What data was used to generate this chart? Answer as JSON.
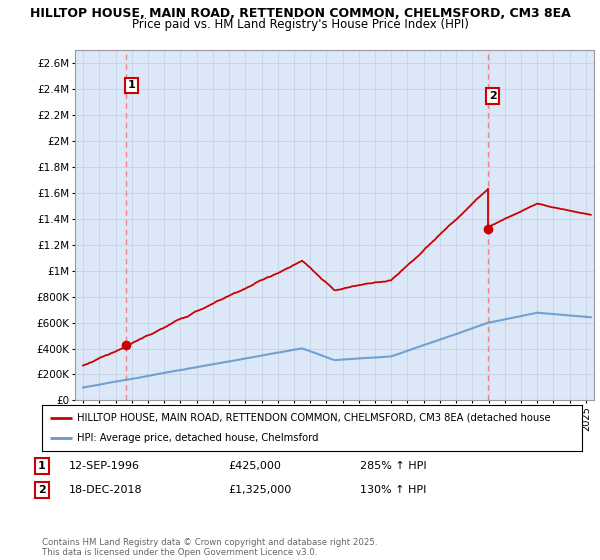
{
  "title_line1": "HILLTOP HOUSE, MAIN ROAD, RETTENDON COMMON, CHELMSFORD, CM3 8EA",
  "title_line2": "Price paid vs. HM Land Registry's House Price Index (HPI)",
  "ylim": [
    0,
    2700000
  ],
  "yticks": [
    0,
    200000,
    400000,
    600000,
    800000,
    1000000,
    1200000,
    1400000,
    1600000,
    1800000,
    2000000,
    2200000,
    2400000,
    2600000
  ],
  "ytick_labels": [
    "£0",
    "£200K",
    "£400K",
    "£600K",
    "£800K",
    "£1M",
    "£1.2M",
    "£1.4M",
    "£1.6M",
    "£1.8M",
    "£2M",
    "£2.2M",
    "£2.4M",
    "£2.6M"
  ],
  "xlim_start": 1993.5,
  "xlim_end": 2025.5,
  "sale1_year": 1996.67,
  "sale1_price": 425000,
  "sale2_year": 2018.96,
  "sale2_price": 1325000,
  "hpi_color": "#6699cc",
  "price_color": "#cc0000",
  "dashed_line_color": "#ee8888",
  "grid_color": "#c8d4e8",
  "background_color": "#dce8f8",
  "legend_label1": "HILLTOP HOUSE, MAIN ROAD, RETTENDON COMMON, CHELMSFORD, CM3 8EA (detached house",
  "legend_label2": "HPI: Average price, detached house, Chelmsford",
  "sale1_label": "12-SEP-1996",
  "sale1_amount": "£425,000",
  "sale1_hpi": "285% ↑ HPI",
  "sale2_label": "18-DEC-2018",
  "sale2_amount": "£1,325,000",
  "sale2_hpi": "130% ↑ HPI",
  "footer": "Contains HM Land Registry data © Crown copyright and database right 2025.\nThis data is licensed under the Open Government Licence v3.0."
}
